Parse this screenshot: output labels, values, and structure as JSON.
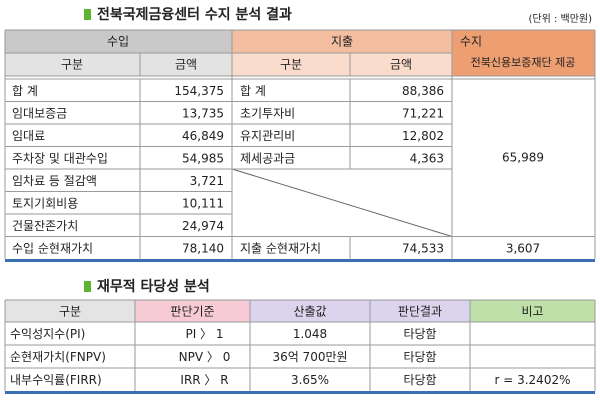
{
  "section1": {
    "title": "전북국제금융센터 수지 분석 결과",
    "unit": "(단위 : 백만원)",
    "table": {
      "headers": {
        "income": "수입",
        "expense": "지출",
        "balance": [
          "수지",
          "전북신용보증재단 제공"
        ],
        "sub": [
          "구분",
          "금액",
          "구분",
          "금액"
        ]
      },
      "rows": [
        [
          "합 계",
          "154,375",
          "합 계",
          "88,386"
        ],
        [
          "임대보증금",
          "13,735",
          "초기투자비",
          "71,221"
        ],
        [
          "임대료",
          "46,849",
          "유지관리비",
          "12,802"
        ],
        [
          "주차장 및 대관수입",
          "54,985",
          "제세공과금",
          "4,363"
        ],
        [
          "임차료 등 절감액",
          "3,721"
        ],
        [
          "토지기회비용",
          "10,111"
        ],
        [
          "건물잔존가치",
          "24,974"
        ]
      ],
      "balance_value": "65,989",
      "total": [
        "수입 순현재가치",
        "78,140",
        "지출 순현재가치",
        "74,533",
        "3,607"
      ]
    }
  },
  "section2": {
    "title": "재무적 타당성 분석",
    "table": {
      "headers": [
        "구분",
        "판단기준",
        "산출값",
        "판단결과",
        "비고"
      ],
      "rows": [
        [
          "수익성지수(PI)",
          "PI 〉 1",
          "1.048",
          "타당함",
          ""
        ],
        [
          "순현재가치(FNPV)",
          "NPV 〉 0",
          "36억 700만원",
          "타당함",
          ""
        ],
        [
          "내부수익률(FIRR)",
          "IRR 〉 R",
          "3.65%",
          "타당함",
          "r = 3.2402%"
        ]
      ]
    }
  }
}
